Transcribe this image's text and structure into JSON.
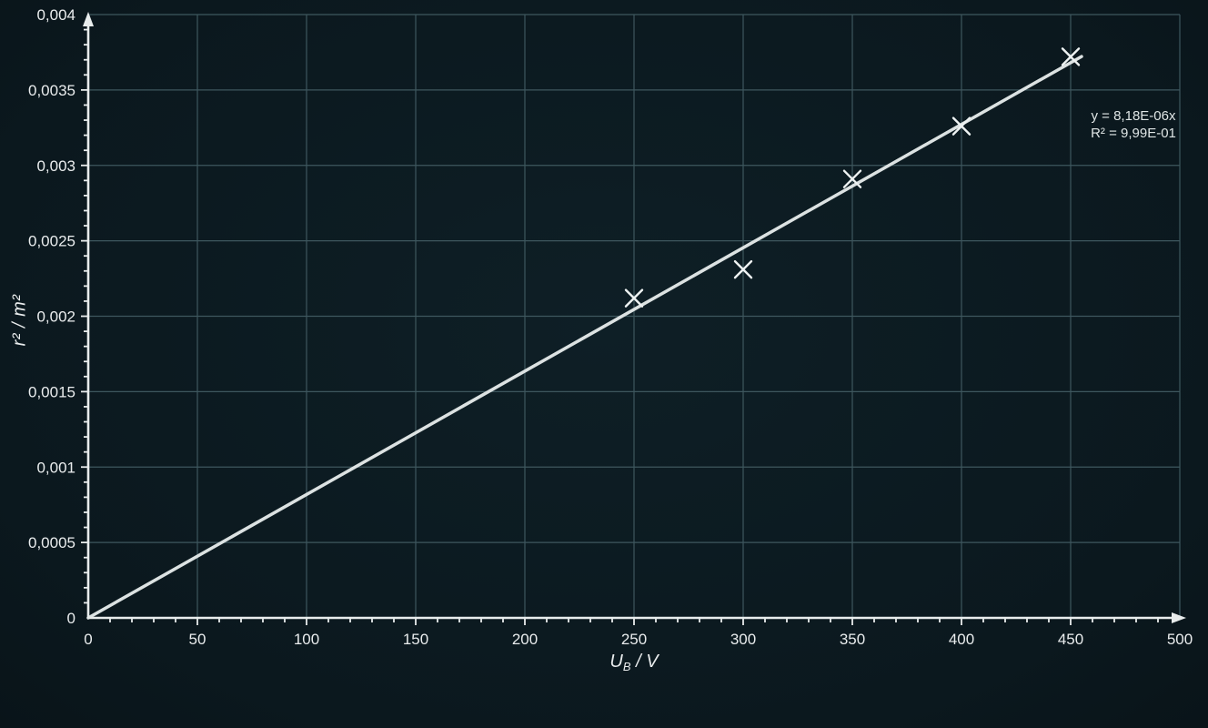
{
  "chart_data": {
    "type": "scatter",
    "title": "",
    "xlabel_parts": {
      "symbol": "U",
      "subscript": "B",
      "unit": " / V"
    },
    "ylabel": "r² / m²",
    "x": [
      250,
      300,
      350,
      400,
      450
    ],
    "y": [
      0.00212,
      0.00231,
      0.00291,
      0.00326,
      0.00372
    ],
    "marker": "x",
    "xlim": [
      0,
      500
    ],
    "ylim": [
      0,
      0.004
    ],
    "x_tick_values": [
      0,
      50,
      100,
      150,
      200,
      250,
      300,
      350,
      400,
      450,
      500
    ],
    "x_tick_labels": [
      "0",
      "50",
      "100",
      "150",
      "200",
      "250",
      "300",
      "350",
      "400",
      "450",
      "500"
    ],
    "x_minor_step": 10,
    "y_tick_values": [
      0,
      0.0005,
      0.001,
      0.0015,
      0.002,
      0.0025,
      0.003,
      0.0035,
      0.004
    ],
    "y_tick_labels": [
      "0",
      "0,0005",
      "0,001",
      "0,0015",
      "0,002",
      "0,0025",
      "0,003",
      "0,0035",
      "0,004"
    ],
    "y_minor_step": 0.0001,
    "grid": true,
    "legend": "none",
    "trendline": {
      "slope": 8.18e-06,
      "intercept": 0,
      "x_range": [
        0,
        455
      ],
      "equation": "y = 8,18E-06x",
      "r_squared": "R² = 9,99E-01"
    },
    "colors": {
      "background": "#0c1b21",
      "grid": "#3e575e",
      "axis": "#e8ecec",
      "tick_text": "#e9eced",
      "marker": "#eef2f2",
      "trendline": "#dce2e2",
      "annotation_text": "#dfe5e5"
    }
  }
}
